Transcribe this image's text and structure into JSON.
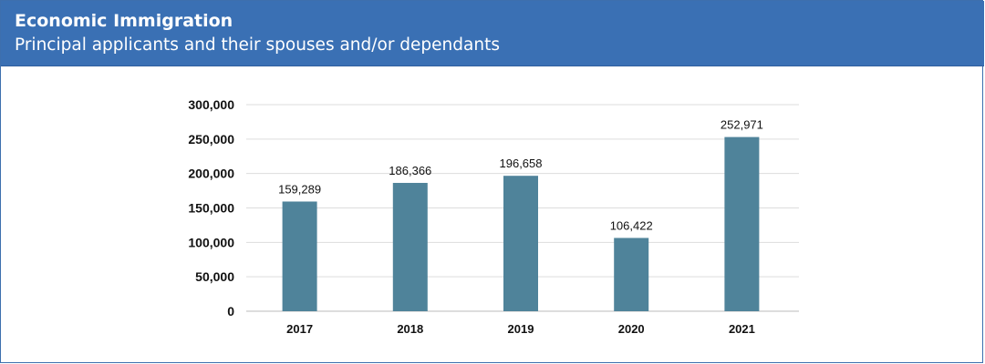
{
  "header": {
    "title": "Economic Immigration",
    "subtitle": "Principal applicants and their spouses and/or dependants"
  },
  "colors": {
    "header_bg": "#3a70b4",
    "bar": "#4f839a",
    "grid": "#dddddd"
  },
  "chart_data": {
    "type": "bar",
    "title": "",
    "xlabel": "",
    "ylabel": "",
    "categories": [
      "2017",
      "2018",
      "2019",
      "2020",
      "2021"
    ],
    "values": [
      159289,
      186366,
      196658,
      106422,
      252971
    ],
    "data_labels": [
      "159,289",
      "186,366",
      "196,658",
      "106,422",
      "252,971"
    ],
    "ylim": [
      0,
      300000
    ],
    "yticks": [
      0,
      50000,
      100000,
      150000,
      200000,
      250000,
      300000
    ],
    "ytick_labels": [
      "0",
      "50,000",
      "100,000",
      "150,000",
      "200,000",
      "250,000",
      "300,000"
    ],
    "grid": true,
    "legend": "none"
  }
}
